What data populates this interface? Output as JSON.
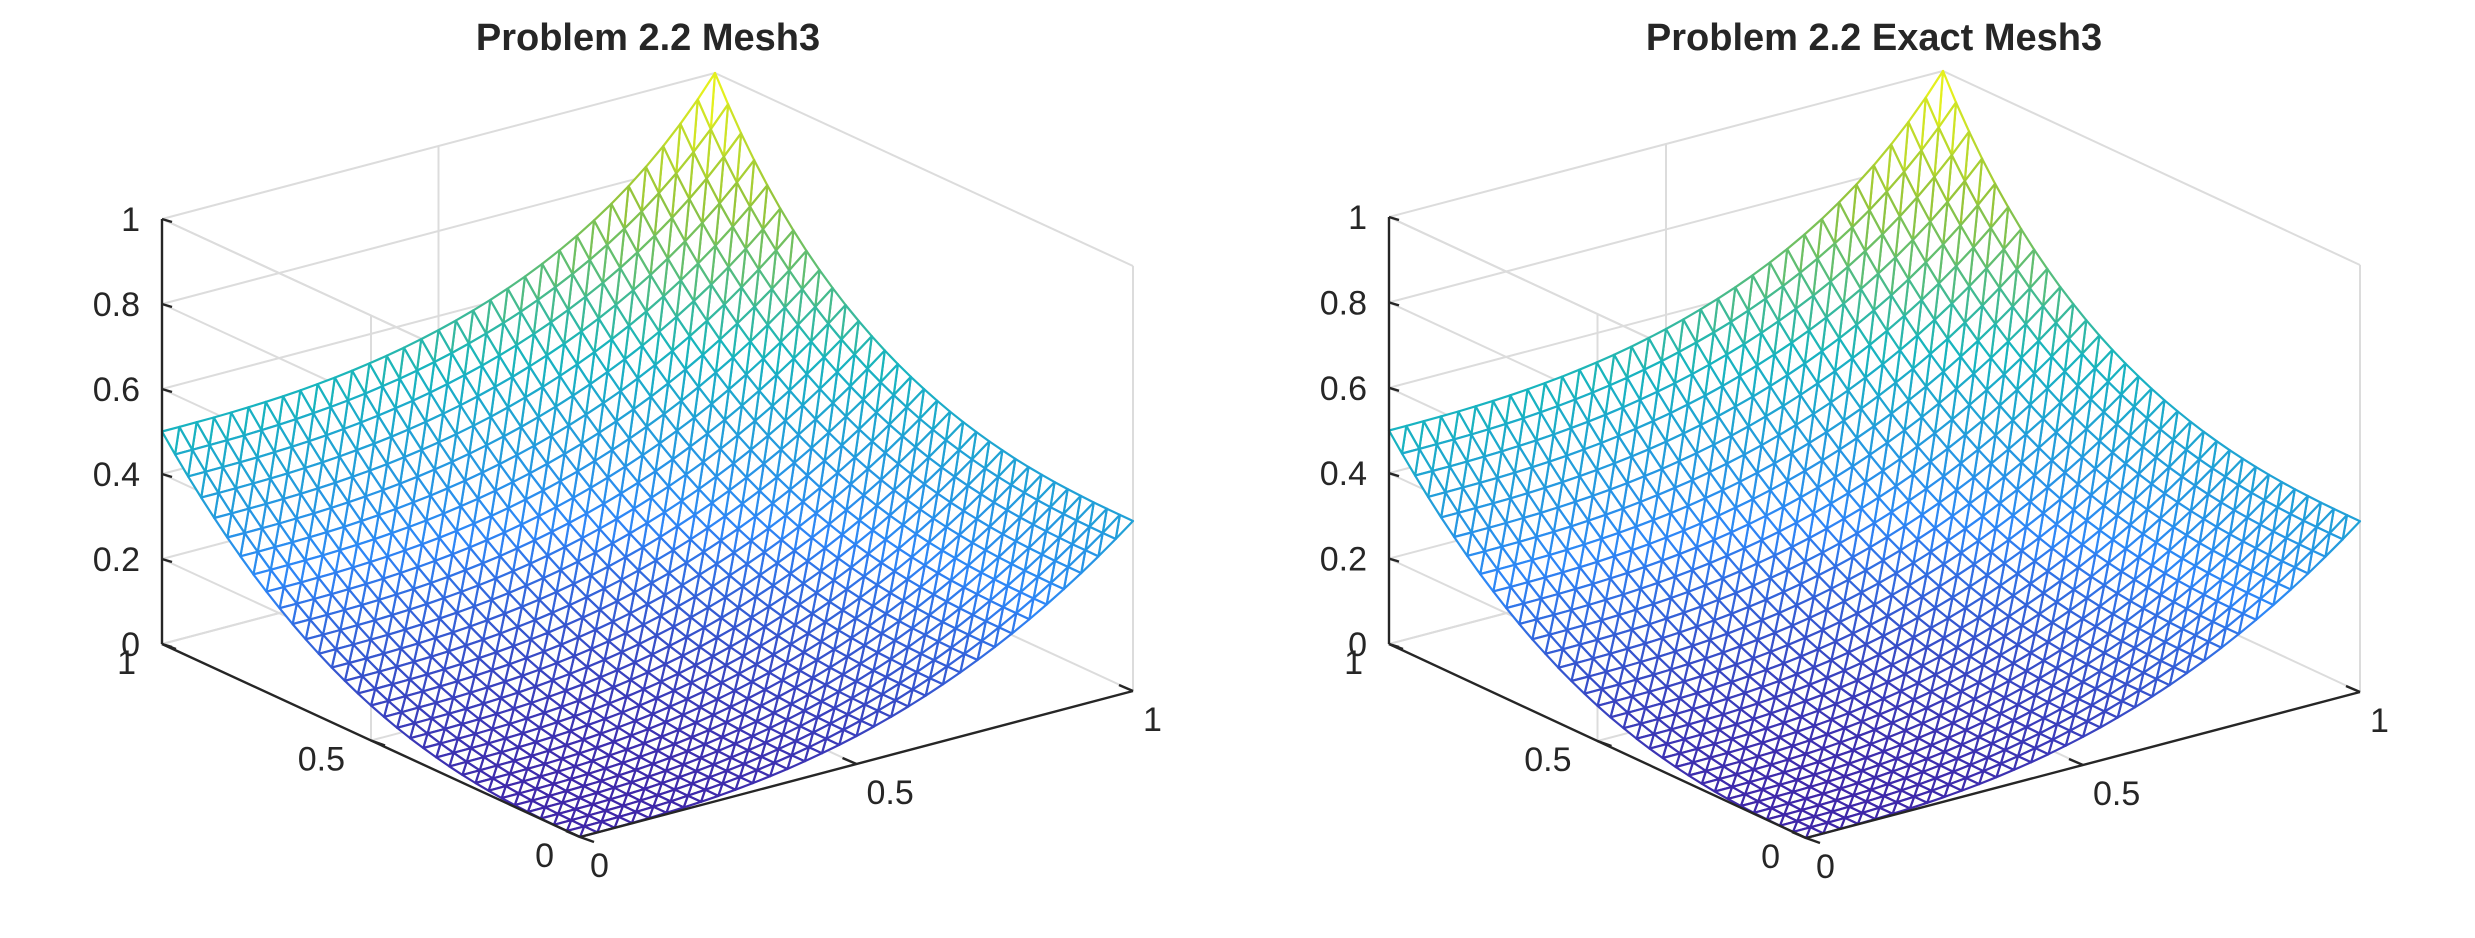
{
  "chart_data": [
    {
      "type": "surface",
      "title": "Problem 2.2 Mesh3",
      "xlabel": "",
      "ylabel": "",
      "zlabel": "",
      "xlim": [
        0,
        1
      ],
      "ylim": [
        0,
        1
      ],
      "zlim": [
        0,
        1
      ],
      "x_ticks": [
        "0",
        "0.5",
        "1"
      ],
      "y_ticks": [
        "0",
        "0.5",
        "1"
      ],
      "z_ticks": [
        "0",
        "0.2",
        "0.4",
        "0.6",
        "0.8",
        "1"
      ],
      "grid": true,
      "mesh": "triangular",
      "mesh_divisions": 32,
      "colormap": [
        "#3e26a8",
        "#2e87f7",
        "#18b5be",
        "#95c53b",
        "#f9fb15"
      ],
      "corner_values": {
        "x0_y0": 0.0,
        "x1_y0": 0.4,
        "x0_y1": 0.5,
        "x1_y1": 1.0
      }
    },
    {
      "type": "surface",
      "title": "Problem 2.2 Exact Mesh3",
      "xlabel": "",
      "ylabel": "",
      "zlabel": "",
      "xlim": [
        0,
        1
      ],
      "ylim": [
        0,
        1
      ],
      "zlim": [
        0,
        1
      ],
      "x_ticks": [
        "0",
        "0.5",
        "1"
      ],
      "y_ticks": [
        "0",
        "0.5",
        "1"
      ],
      "z_ticks": [
        "0",
        "0.2",
        "0.4",
        "0.6",
        "0.8",
        "1"
      ],
      "grid": true,
      "mesh": "triangular",
      "mesh_divisions": 32,
      "colormap": [
        "#3e26a8",
        "#2e87f7",
        "#18b5be",
        "#95c53b",
        "#f9fb15"
      ],
      "corner_values": {
        "x0_y0": 0.0,
        "x1_y0": 0.4,
        "x0_y1": 0.5,
        "x1_y1": 1.0
      }
    }
  ]
}
